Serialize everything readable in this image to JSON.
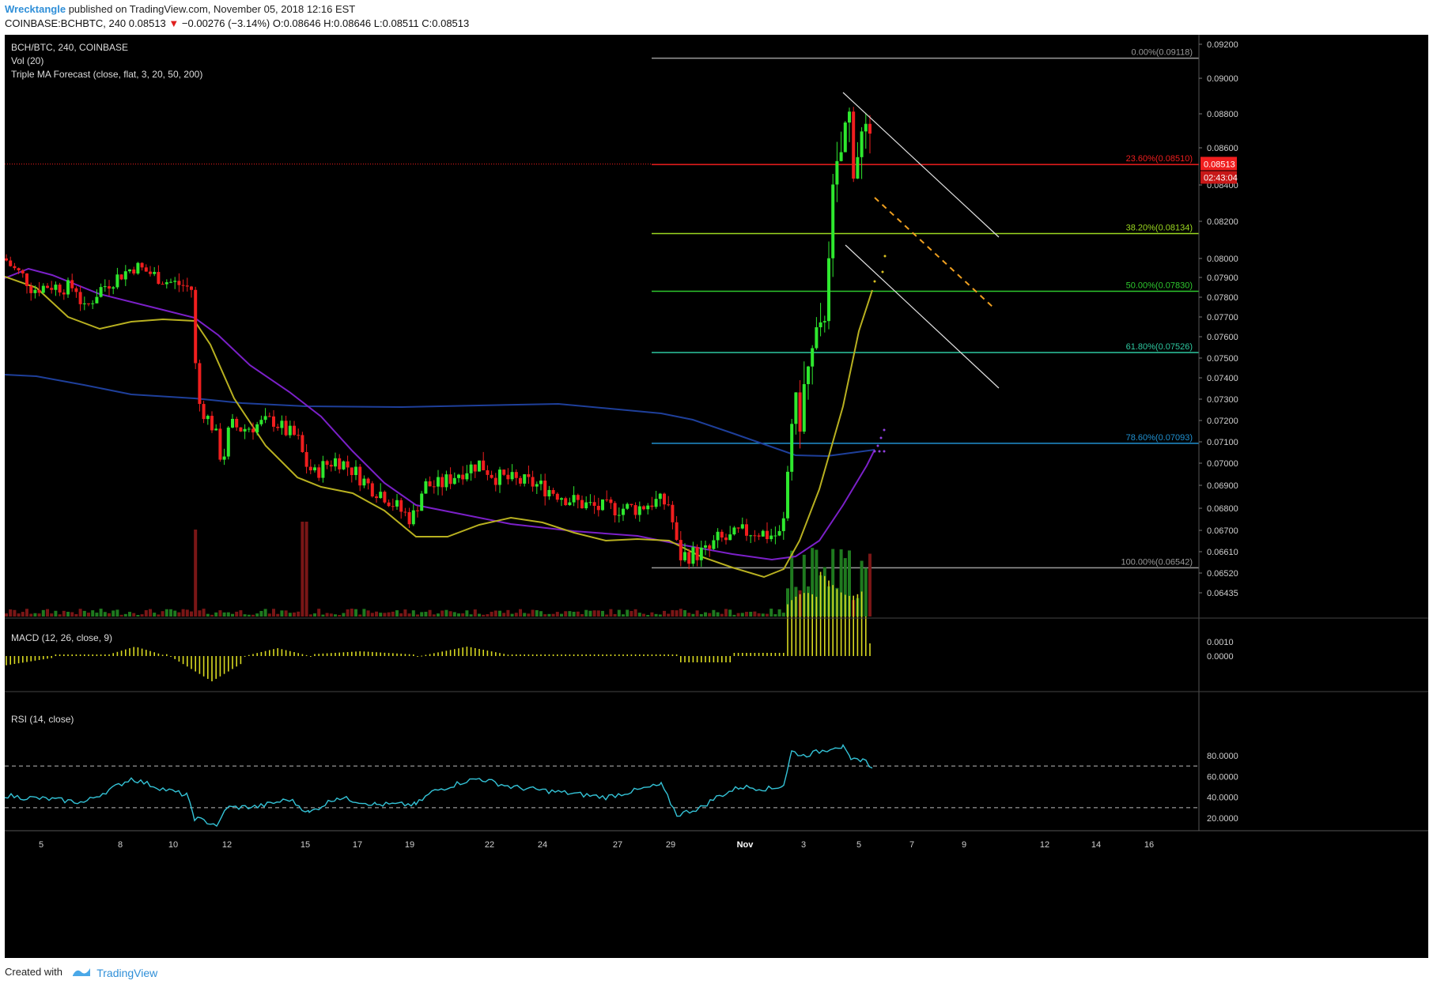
{
  "header": {
    "author": "Wrecktangle",
    "published_text": "published on TradingView.com, November 05, 2018 12:16 EST",
    "symbol": "COINBASE:BCHBTC, 240",
    "last": "0.08513",
    "change": "−0.00276 (−3.14%)",
    "ohlc": "O:0.08646 H:0.08646 L:0.08511 C:0.08513"
  },
  "legend": {
    "title": "BCH/BTC, 240, COINBASE",
    "vol": "Vol (20)",
    "ma": "Triple MA Forecast (close, flat, 3, 20, 50, 200)",
    "macd": "MACD (12, 26, close, 9)",
    "rsi": "RSI (14, close)"
  },
  "footer": {
    "created_with": "Created with",
    "brand": "TradingView"
  },
  "colors": {
    "up": "#2ee82e",
    "down": "#f01e1e",
    "ma_fast": "#b8b020",
    "ma_mid": "#7b20c8",
    "ma_slow": "#1e3f9a",
    "rsi": "#34c4d8",
    "macd": "#d8d820"
  },
  "chart_data": {
    "type": "candlestick",
    "price_axis": {
      "ticks": [
        "0.09200",
        "0.09000",
        "0.08800",
        "0.08600",
        "0.08400",
        "0.08200",
        "0.08000",
        "0.07900",
        "0.07800",
        "0.07700",
        "0.07600",
        "0.07500",
        "0.07400",
        "0.07300",
        "0.07200",
        "0.07100",
        "0.07000",
        "0.06900",
        "0.06800",
        "0.06700",
        "0.06610",
        "0.06520",
        "0.06435"
      ],
      "last_price_label": "0.08513",
      "countdown_label": "02:43:04"
    },
    "x_ticks": [
      "5",
      "8",
      "10",
      "12",
      "15",
      "17",
      "19",
      "22",
      "24",
      "27",
      "29",
      "Nov",
      "3",
      "5",
      "7",
      "9",
      "12",
      "14",
      "16"
    ],
    "fib_levels": [
      {
        "label": "0.00%(0.09118)",
        "value": 0.09118,
        "color": "#9a9a9a"
      },
      {
        "label": "23.60%(0.08510)",
        "value": 0.0851,
        "color": "#f01e1e"
      },
      {
        "label": "38.20%(0.08134)",
        "value": 0.08134,
        "color": "#9bd820"
      },
      {
        "label": "50.00%(0.07830)",
        "value": 0.0783,
        "color": "#2ec82e"
      },
      {
        "label": "61.80%(0.07526)",
        "value": 0.07526,
        "color": "#2ec8a0"
      },
      {
        "label": "78.60%(0.07093)",
        "value": 0.07093,
        "color": "#2090d0"
      },
      {
        "label": "100.00%(0.06542)",
        "value": 0.06542,
        "color": "#9a9a9a"
      }
    ],
    "macd_axis": [
      "0.0010",
      "0.0000"
    ],
    "rsi_axis": [
      "80.0000",
      "60.0000",
      "40.0000",
      "20.0000"
    ]
  }
}
